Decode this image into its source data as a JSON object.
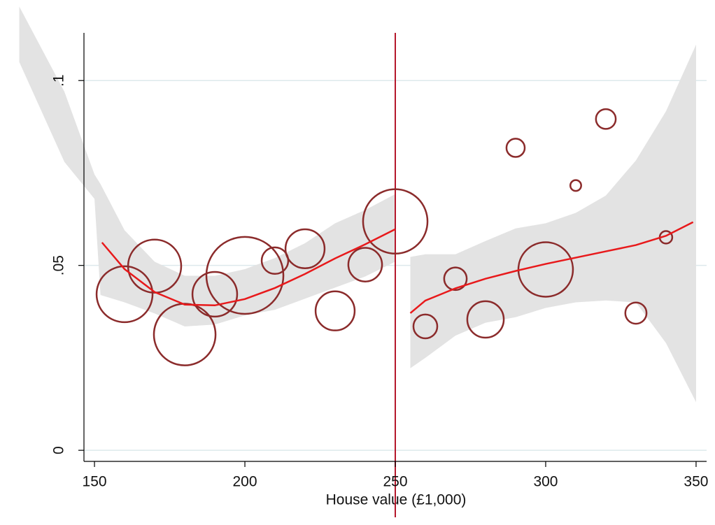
{
  "chart_data": {
    "type": "bubble",
    "x_label": "House value (£1,000)",
    "xlim": [
      146.5,
      353.5
    ],
    "ylim": [
      -0.003,
      0.118
    ],
    "xticks": [
      150,
      200,
      250,
      300,
      350
    ],
    "yticks": [
      {
        "value": 0,
        "label": "0"
      },
      {
        "value": 0.05,
        "label": ".05"
      },
      {
        "value": 0.1,
        "label": ".1"
      }
    ],
    "grid": true,
    "cutoff": 250,
    "cutoff_color": "#b5172b",
    "bubbles": {
      "color": "#8b2b2b",
      "x": [
        160,
        170,
        180,
        190,
        200,
        210,
        220,
        230,
        240,
        250,
        260,
        270,
        280,
        290,
        300,
        310,
        320,
        330,
        340
      ],
      "values": [
        0.0422,
        0.0498,
        0.0313,
        0.0422,
        0.0473,
        0.0513,
        0.0545,
        0.0377,
        0.0502,
        0.0619,
        0.0335,
        0.0464,
        0.0354,
        0.0818,
        0.0489,
        0.0716,
        0.0896,
        0.0371,
        0.0576
      ],
      "sizes": [
        16,
        14.4,
        19.4,
        10.2,
        30.3,
        3.6,
        7.8,
        7.8,
        5.8,
        21.2,
        2.9,
        2.6,
        6.8,
        1.7,
        15.2,
        0.6,
        2,
        2.3,
        0.8
      ]
    },
    "fits": [
      {
        "color": "#e8191b",
        "x": [
          152.5,
          160,
          170,
          180,
          190,
          200,
          210,
          220,
          230,
          240,
          250
        ],
        "values": [
          0.0562,
          0.049,
          0.0428,
          0.0394,
          0.0392,
          0.0409,
          0.0439,
          0.0477,
          0.0519,
          0.0557,
          0.0598
        ]
      },
      {
        "color": "#e8191b",
        "x": [
          255,
          260,
          270,
          280,
          290,
          300,
          310,
          320,
          330,
          340,
          349
        ],
        "values": [
          0.0371,
          0.0405,
          0.0438,
          0.0464,
          0.0485,
          0.0504,
          0.0521,
          0.0538,
          0.0555,
          0.058,
          0.0617
        ]
      }
    ],
    "bands": [
      {
        "color": "#e3e3e3",
        "x": [
          125,
          140,
          150,
          152,
          160,
          170,
          180,
          190,
          200,
          210,
          220,
          230,
          240,
          250
        ],
        "upper": [
          0.12,
          0.097,
          0.0746,
          0.072,
          0.0595,
          0.051,
          0.0472,
          0.0472,
          0.049,
          0.052,
          0.056,
          0.0614,
          0.065,
          0.0693
        ],
        "lower": [
          0.105,
          0.078,
          0.068,
          0.042,
          0.04,
          0.037,
          0.0335,
          0.034,
          0.0365,
          0.038,
          0.041,
          0.044,
          0.047,
          0.051
        ]
      },
      {
        "color": "#e3e3e3",
        "x": [
          255,
          260,
          270,
          280,
          290,
          300,
          310,
          320,
          330,
          340,
          350
        ],
        "upper": [
          0.0523,
          0.053,
          0.053,
          0.0566,
          0.06,
          0.0614,
          0.0642,
          0.0689,
          0.0784,
          0.0917,
          0.1097
        ],
        "lower": [
          0.0222,
          0.025,
          0.031,
          0.0345,
          0.036,
          0.0385,
          0.04,
          0.0405,
          0.04,
          0.029,
          0.013
        ]
      }
    ]
  }
}
